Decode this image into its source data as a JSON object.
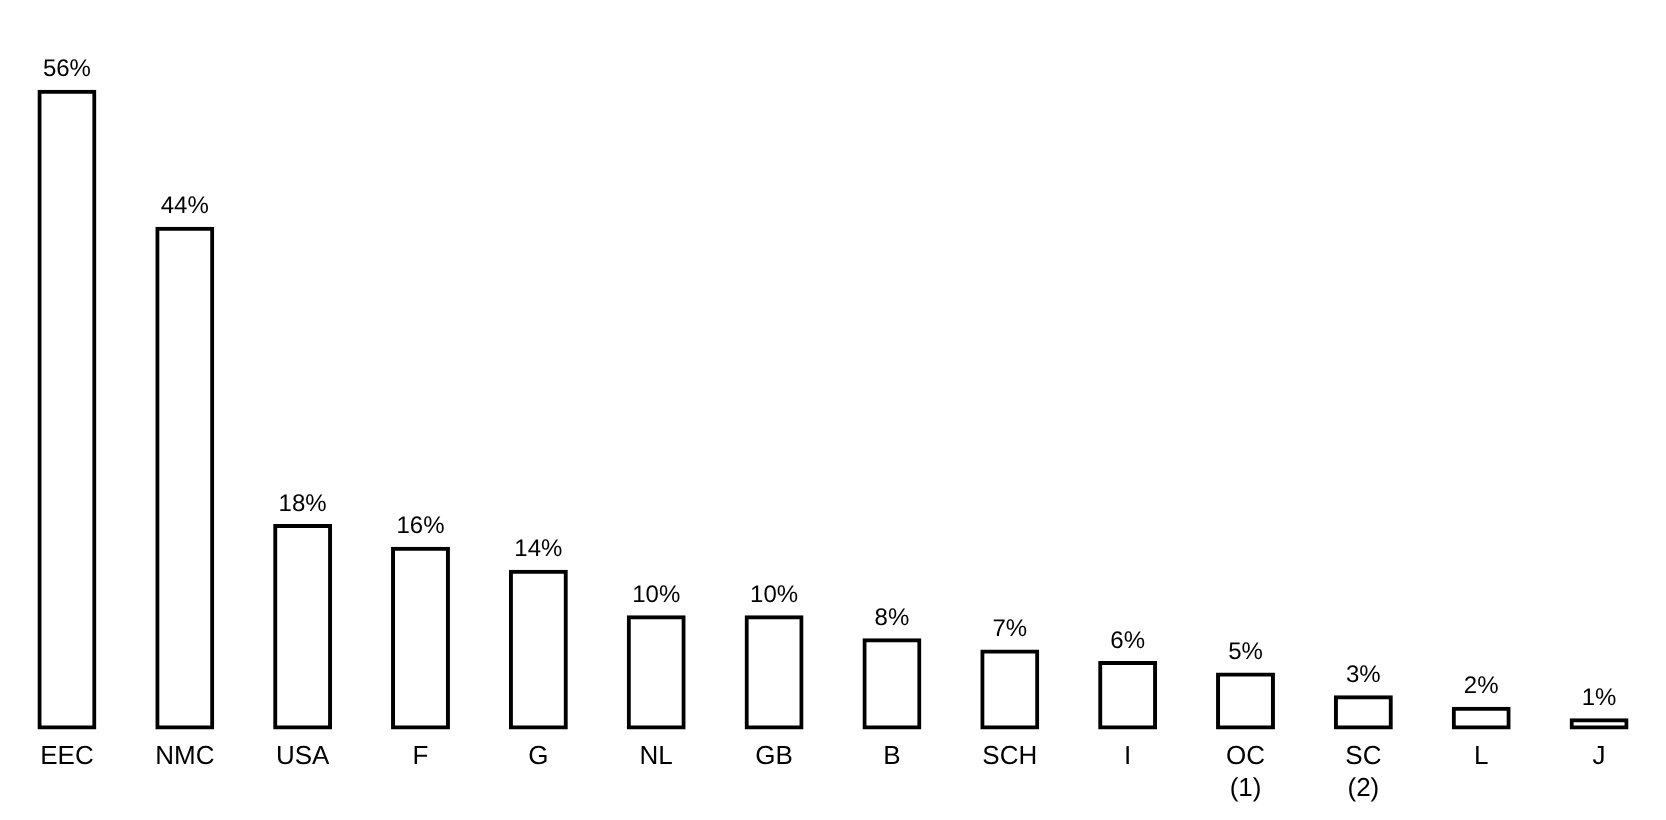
{
  "chart_data": {
    "type": "bar",
    "categories": [
      "EEC",
      "NMC",
      "USA",
      "F",
      "G",
      "NL",
      "GB",
      "B",
      "SCH",
      "I",
      "OC\n(1)",
      "SC\n(2)",
      "L",
      "J"
    ],
    "values": [
      56,
      44,
      18,
      16,
      14,
      10,
      10,
      8,
      7,
      6,
      5,
      3,
      2,
      1
    ],
    "value_labels": [
      "56%",
      "44%",
      "18%",
      "16%",
      "14%",
      "10%",
      "10%",
      "8%",
      "7%",
      "6%",
      "5%",
      "3%",
      "2%",
      "1%"
    ],
    "color": "#000000",
    "grid": false,
    "legend": false,
    "tick_labels": "x"
  }
}
